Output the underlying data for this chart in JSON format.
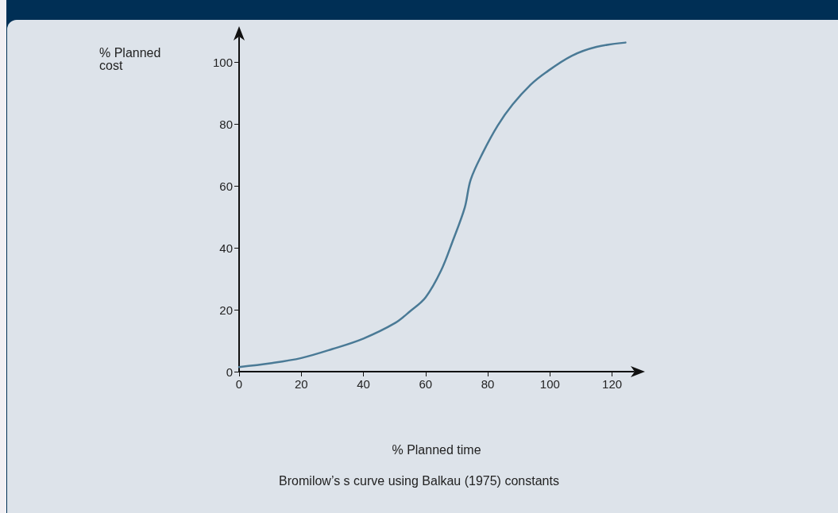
{
  "chart_data": {
    "type": "line",
    "xlabel": "% Planned time",
    "ylabel": "% Planned cost",
    "annotations": [
      "Bromilow’s s curve using Balkau (1975) constants"
    ],
    "x": [
      0,
      10,
      20,
      30,
      40,
      50,
      55,
      60,
      65,
      68.8,
      72.6,
      74.5,
      78.4,
      83.2,
      88,
      93.8,
      98.6,
      107,
      115,
      124.3
    ],
    "series": [
      {
        "color": "#4a7a96",
        "values": [
          1.5,
          2.7,
          4.4,
          7.3,
          10.7,
          15.6,
          19.5,
          24,
          32.7,
          42.4,
          53,
          62,
          70.7,
          79.5,
          86.3,
          92.7,
          96.6,
          102,
          104.9,
          106.3
        ]
      }
    ],
    "xlim": [
      0,
      127
    ],
    "ylim": [
      0,
      108
    ],
    "xticks": [
      0,
      20,
      40,
      60,
      80,
      100,
      120
    ],
    "yticks": [
      0,
      20,
      40,
      60,
      80,
      100
    ],
    "grid": false,
    "marker": "none",
    "line_style": "solid"
  }
}
